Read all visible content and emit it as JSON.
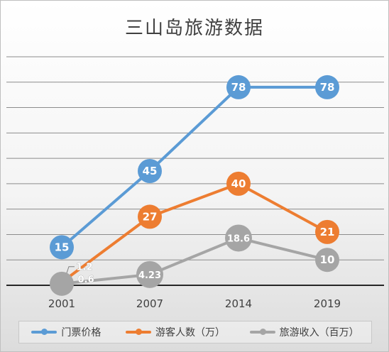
{
  "chart_data": {
    "type": "line",
    "title": "三山岛旅游数据",
    "categories": [
      "2001",
      "2007",
      "2014",
      "2019"
    ],
    "ylim": [
      0,
      90
    ],
    "grid": true,
    "legend_position": "bottom",
    "series": [
      {
        "name": "门票价格",
        "color": "#5b9bd5",
        "values": [
          15,
          45,
          78,
          78
        ],
        "labels": [
          "15",
          "45",
          "78",
          "78"
        ]
      },
      {
        "name": "游客人数（万）",
        "color": "#ed7d31",
        "values": [
          1.2,
          27,
          40,
          21
        ],
        "labels": [
          "1.2",
          "27",
          "40",
          "21"
        ]
      },
      {
        "name": "旅游收入（百万）",
        "color": "#a5a5a5",
        "values": [
          0.6,
          4.23,
          18.6,
          10
        ],
        "labels": [
          "0.6",
          "4.23",
          "18.6",
          "10"
        ]
      }
    ]
  }
}
